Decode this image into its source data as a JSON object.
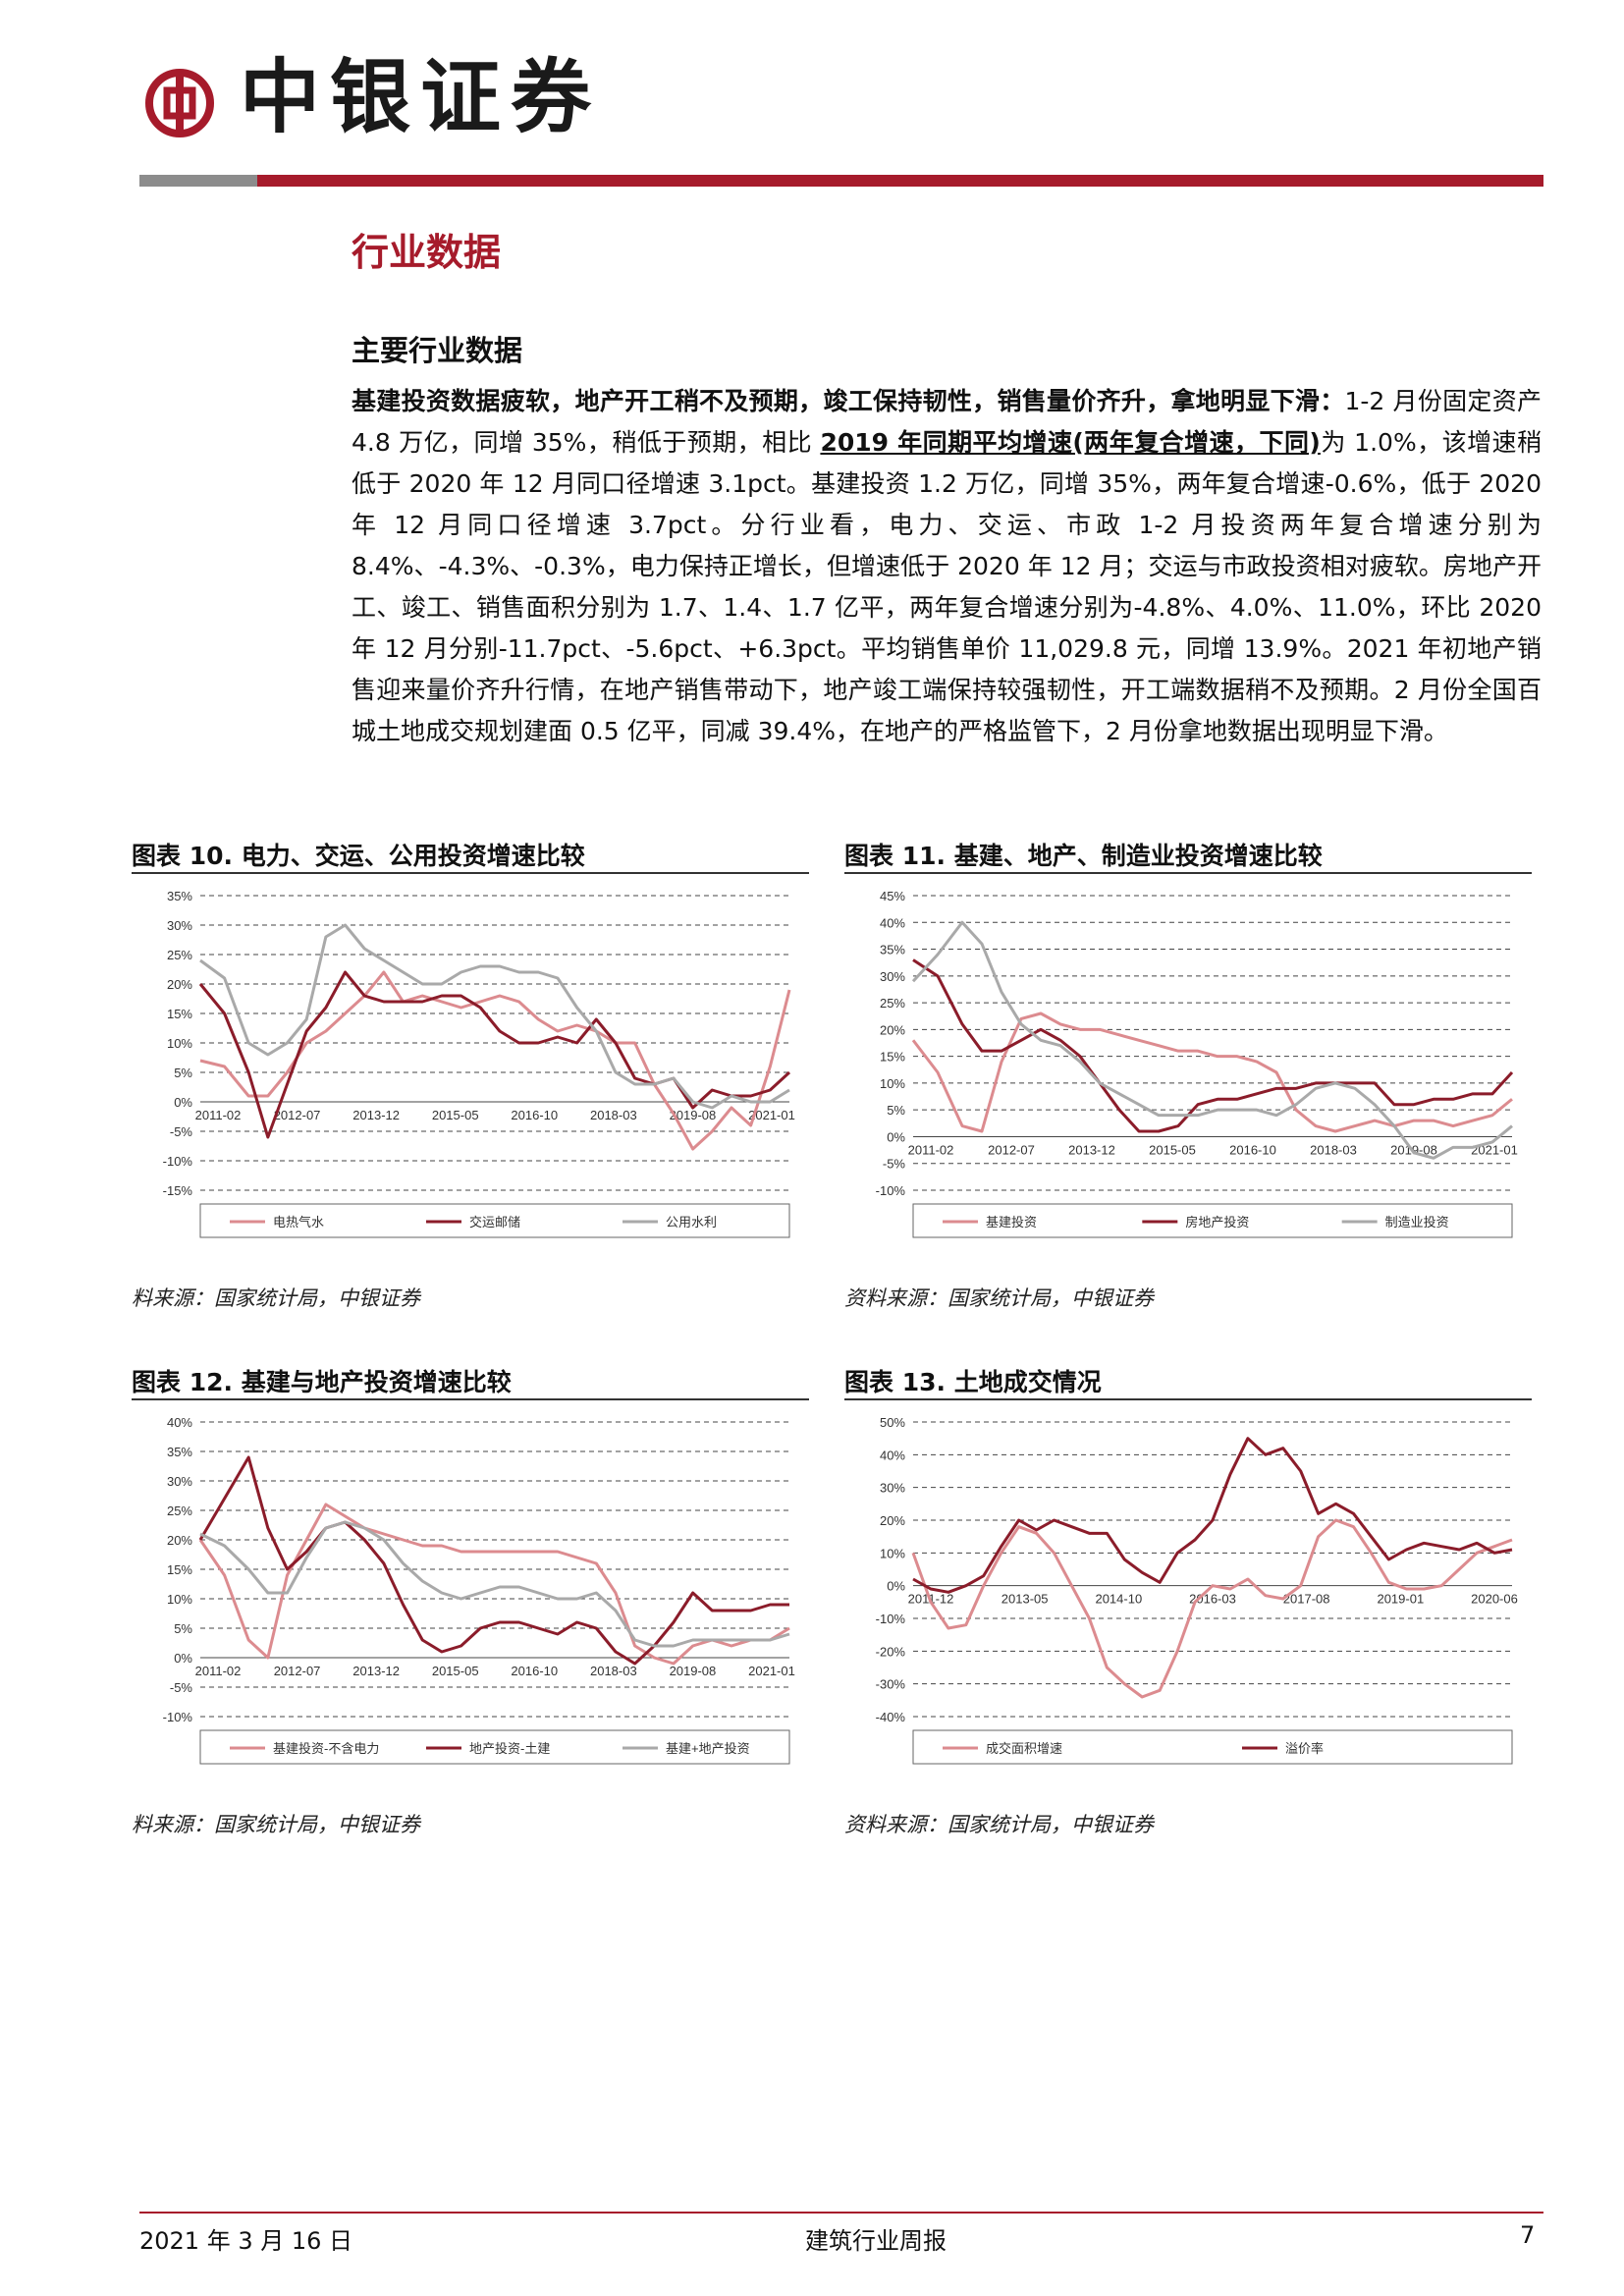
{
  "header": {
    "logo_text": "中银证券",
    "colors": {
      "brand_red": "#a61b2b",
      "grey": "#8c8c8c"
    }
  },
  "section_title": "行业数据",
  "sub_title": "主要行业数据",
  "paragraph": {
    "lead": "基建投资数据疲软，地产开工稍不及预期，竣工保持韧性，销售量价齐升，拿地明显下滑：",
    "part1": "1-2 月份固定资产 4.8 万亿，同增 35%，稍低于预期，相比 ",
    "underlined": "2019 年同期平均增速(两年复合增速，下同)",
    "part2": "为 1.0%，该增速稍低于 2020 年 12 月同口径增速 3.1pct。基建投资 1.2 万亿，同增 35%，两年复合增速-0.6%，低于 2020 年 12 月同口径增速 3.7pct。分行业看，电力、交运、市政 1-2 月投资两年复合增速分别为 8.4%、-4.3%、-0.3%，电力保持正增长，但增速低于 2020 年 12 月；交运与市政投资相对疲软。房地产开工、竣工、销售面积分别为 1.7、1.4、1.7 亿平，两年复合增速分别为-4.8%、4.0%、11.0%，环比 2020 年 12 月分别-11.7pct、-5.6pct、+6.3pct。平均销售单价 11,029.8 元，同增 13.9%。2021 年初地产销售迎来量价齐升行情，在地产销售带动下，地产竣工端保持较强韧性，开工端数据稍不及预期。2 月份全国百城土地成交规划建面 0.5 亿平，同减 39.4%，在地产的严格监管下，2 月份拿地数据出现明显下滑。"
  },
  "figures": [
    {
      "title": "图表 10. 电力、交运、公用投资增速比较",
      "source": "料来源：国家统计局，中银证券"
    },
    {
      "title": "图表 11. 基建、地产、制造业投资增速比较",
      "source": "资料来源：国家统计局，中银证券"
    },
    {
      "title": "图表 12. 基建与地产投资增速比较",
      "source": "料来源：国家统计局，中银证券"
    },
    {
      "title": "图表 13. 土地成交情况",
      "source": "资料来源：国家统计局，中银证券"
    }
  ],
  "chart_data": [
    {
      "type": "line",
      "x_ticks": [
        "2011-02",
        "2012-07",
        "2013-12",
        "2015-05",
        "2016-10",
        "2018-03",
        "2019-08",
        "2021-01"
      ],
      "x": [
        0,
        5,
        10,
        14,
        18,
        22,
        26,
        30,
        34,
        38,
        42,
        46,
        50,
        54,
        58,
        62,
        66,
        70,
        74,
        78,
        82,
        86,
        90,
        94,
        98,
        102,
        106,
        110,
        114,
        118,
        122
      ],
      "ylim": [
        -15,
        35
      ],
      "yticks": [
        -15,
        -10,
        -5,
        0,
        5,
        10,
        15,
        20,
        25,
        30,
        35
      ],
      "series": [
        {
          "name": "电热气水",
          "color": "#dc8b8f",
          "values": [
            7,
            6,
            1,
            1,
            5,
            10,
            12,
            15,
            18,
            22,
            17,
            18,
            17,
            16,
            17,
            18,
            17,
            14,
            12,
            13,
            12,
            10,
            10,
            3,
            -2,
            -8,
            -5,
            -1,
            -4,
            6,
            19
          ]
        },
        {
          "name": "交运邮储",
          "color": "#8b1c2a",
          "values": [
            20,
            15,
            5,
            -6,
            3,
            12,
            16,
            22,
            18,
            17,
            17,
            17,
            18,
            18,
            16,
            12,
            10,
            10,
            11,
            10,
            14,
            10,
            4,
            3,
            4,
            -1,
            2,
            1,
            1,
            2,
            5
          ]
        },
        {
          "name": "公用水利",
          "color": "#a9a9a9",
          "values": [
            24,
            21,
            10,
            8,
            10,
            14,
            28,
            30,
            26,
            24,
            22,
            20,
            20,
            22,
            23,
            23,
            22,
            22,
            21,
            16,
            12,
            5,
            3,
            3,
            4,
            0,
            -1,
            1,
            0,
            0,
            2
          ]
        }
      ],
      "legend": "bottom"
    },
    {
      "type": "line",
      "x_ticks": [
        "2011-02",
        "2012-07",
        "2013-12",
        "2015-05",
        "2016-10",
        "2018-03",
        "2019-08",
        "2021-01"
      ],
      "x": [
        0,
        5,
        10,
        14,
        18,
        22,
        26,
        30,
        34,
        38,
        42,
        46,
        50,
        54,
        58,
        62,
        66,
        70,
        74,
        78,
        82,
        86,
        90,
        94,
        98,
        102,
        106,
        110,
        114,
        118,
        122
      ],
      "ylim": [
        -10,
        45
      ],
      "yticks": [
        -10,
        -5,
        0,
        5,
        10,
        15,
        20,
        25,
        30,
        35,
        40,
        45
      ],
      "series": [
        {
          "name": "基建投资",
          "color": "#dc8b8f",
          "values": [
            18,
            12,
            2,
            1,
            14,
            22,
            23,
            21,
            20,
            20,
            19,
            18,
            17,
            16,
            16,
            15,
            15,
            14,
            12,
            5,
            2,
            1,
            2,
            3,
            2,
            3,
            3,
            2,
            3,
            4,
            7
          ]
        },
        {
          "name": "房地产投资",
          "color": "#8b1c2a",
          "values": [
            33,
            30,
            21,
            16,
            16,
            18,
            20,
            18,
            15,
            10,
            5,
            1,
            1,
            2,
            6,
            7,
            7,
            8,
            9,
            9,
            10,
            10,
            10,
            10,
            6,
            6,
            7,
            7,
            8,
            8,
            12
          ]
        },
        {
          "name": "制造业投资",
          "color": "#a9a9a9",
          "values": [
            29,
            34,
            40,
            36,
            27,
            21,
            18,
            17,
            14,
            10,
            8,
            6,
            4,
            4,
            4,
            5,
            5,
            5,
            4,
            6,
            9,
            10,
            9,
            6,
            2,
            -3,
            -4,
            -2,
            -2,
            -1,
            2
          ]
        }
      ],
      "legend": "bottom"
    },
    {
      "type": "line",
      "x_ticks": [
        "2011-02",
        "2012-07",
        "2013-12",
        "2015-05",
        "2016-10",
        "2018-03",
        "2019-08",
        "2021-01"
      ],
      "x": [
        0,
        5,
        10,
        14,
        18,
        22,
        26,
        30,
        34,
        38,
        42,
        46,
        50,
        54,
        58,
        62,
        66,
        70,
        74,
        78,
        82,
        86,
        90,
        94,
        98,
        102,
        106,
        110,
        114,
        118,
        122
      ],
      "ylim": [
        -10,
        40
      ],
      "yticks": [
        -10,
        -5,
        0,
        5,
        10,
        15,
        20,
        25,
        30,
        35,
        40
      ],
      "series": [
        {
          "name": "基建投资-不含电力",
          "color": "#dc8b8f",
          "values": [
            20,
            14,
            3,
            0,
            14,
            20,
            26,
            24,
            22,
            21,
            20,
            19,
            19,
            18,
            18,
            18,
            18,
            18,
            18,
            17,
            16,
            11,
            2,
            0,
            -1,
            2,
            3,
            2,
            3,
            3,
            5
          ]
        },
        {
          "name": "地产投资-土建",
          "color": "#8b1c2a",
          "values": [
            20,
            27,
            34,
            22,
            15,
            18,
            22,
            23,
            20,
            16,
            9,
            3,
            1,
            2,
            5,
            6,
            6,
            5,
            4,
            6,
            5,
            1,
            -1,
            2,
            6,
            11,
            8,
            8,
            8,
            9,
            9
          ]
        },
        {
          "name": "基建+地产投资",
          "color": "#a9a9a9",
          "values": [
            21,
            19,
            15,
            11,
            11,
            17,
            22,
            23,
            22,
            20,
            16,
            13,
            11,
            10,
            11,
            12,
            12,
            11,
            10,
            10,
            11,
            8,
            3,
            2,
            2,
            3,
            3,
            3,
            3,
            3,
            4
          ]
        }
      ],
      "legend": "bottom"
    },
    {
      "type": "line",
      "x_ticks": [
        "2011-12",
        "2013-05",
        "2014-10",
        "2016-03",
        "2017-08",
        "2019-01",
        "2020-06"
      ],
      "x": [
        0,
        3,
        6,
        9,
        12,
        15,
        18,
        21,
        24,
        27,
        30,
        33,
        36,
        39,
        42,
        45,
        48,
        51,
        54,
        57,
        60,
        63,
        66,
        69,
        72,
        75,
        78,
        81,
        84,
        87,
        90,
        93,
        96,
        99,
        102
      ],
      "ylim": [
        -40,
        50
      ],
      "yticks": [
        -40,
        -30,
        -20,
        -10,
        0,
        10,
        20,
        30,
        40,
        50
      ],
      "series": [
        {
          "name": "成交面积增速",
          "color": "#dc8b8f",
          "values": [
            10,
            -5,
            -13,
            -12,
            0,
            10,
            18,
            16,
            10,
            0,
            -10,
            -25,
            -30,
            -34,
            -32,
            -20,
            -5,
            0,
            -1,
            2,
            -3,
            -4,
            0,
            15,
            20,
            18,
            10,
            1,
            -1,
            -1,
            0,
            5,
            10,
            12,
            14
          ]
        },
        {
          "name": "溢价率",
          "color": "#8b1c2a",
          "values": [
            2,
            -1,
            -2,
            0,
            3,
            12,
            20,
            17,
            20,
            18,
            16,
            16,
            8,
            4,
            1,
            10,
            14,
            20,
            34,
            45,
            40,
            42,
            35,
            22,
            25,
            22,
            15,
            8,
            11,
            13,
            12,
            11,
            13,
            10,
            11
          ]
        }
      ],
      "legend": "bottom"
    }
  ],
  "footer": {
    "date": "2021 年 3 月 16 日",
    "title": "建筑行业周报",
    "page": "7"
  }
}
